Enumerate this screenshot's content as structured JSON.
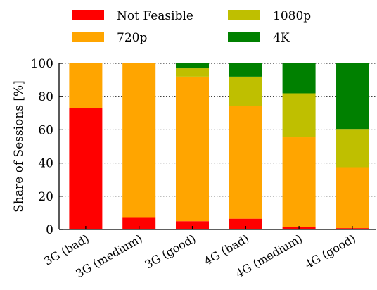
{
  "chart_data": {
    "type": "bar",
    "stacked": true,
    "title": "",
    "xlabel": "",
    "ylabel": "Share of Sessions [%]",
    "ylim": [
      0,
      100
    ],
    "yticks": [
      0,
      20,
      40,
      60,
      80,
      100
    ],
    "grid": "horizontal-dotted",
    "legend_position": "top",
    "categories": [
      "3G (bad)",
      "3G (medium)",
      "3G (good)",
      "4G (bad)",
      "4G (medium)",
      "4G (good)"
    ],
    "series": [
      {
        "name": "Not Feasible",
        "color": "#ff0000",
        "values": [
          73,
          7,
          5,
          6.5,
          1.5,
          0.8
        ]
      },
      {
        "name": "720p",
        "color": "#ffa500",
        "values": [
          27,
          93,
          87,
          68,
          54,
          36.7
        ]
      },
      {
        "name": "1080p",
        "color": "#bfbf00",
        "values": [
          0,
          0,
          5,
          17.5,
          26.5,
          23
        ]
      },
      {
        "name": "4K",
        "color": "#008000",
        "values": [
          0,
          0,
          3,
          8,
          18,
          39.5
        ]
      }
    ]
  }
}
